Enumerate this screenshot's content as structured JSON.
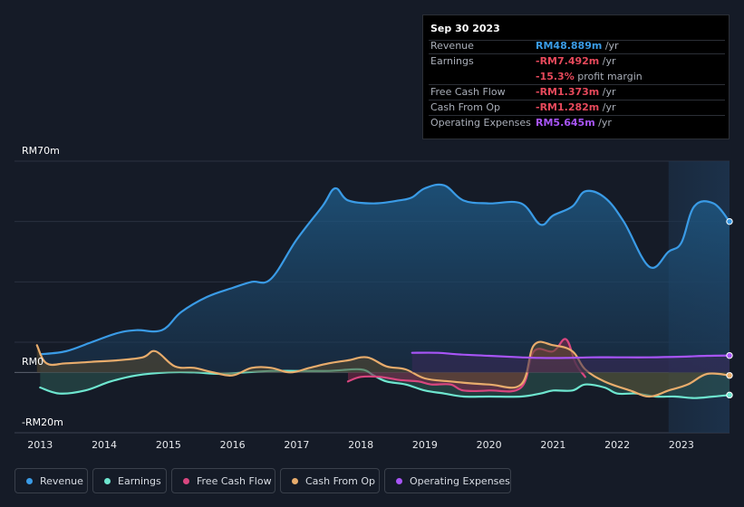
{
  "tooltip": {
    "date": "Sep 30 2023",
    "rows": [
      {
        "label": "Revenue",
        "value": "RM48.889m",
        "unit": " /yr",
        "color": "#3a9be6"
      },
      {
        "label": "Earnings",
        "value": "-RM7.492m",
        "unit": " /yr",
        "color": "#e7495b"
      },
      {
        "label": "",
        "value": "-15.3%",
        "unit": " profit margin",
        "color": "#e7495b"
      },
      {
        "label": "Free Cash Flow",
        "value": "-RM1.373m",
        "unit": " /yr",
        "color": "#e7495b"
      },
      {
        "label": "Cash From Op",
        "value": "-RM1.282m",
        "unit": " /yr",
        "color": "#e7495b"
      },
      {
        "label": "Operating Expenses",
        "value": "RM5.645m",
        "unit": " /yr",
        "color": "#a855f7"
      }
    ]
  },
  "legend": [
    {
      "label": "Revenue",
      "color": "#3a9be6"
    },
    {
      "label": "Earnings",
      "color": "#6ee6cf"
    },
    {
      "label": "Free Cash Flow",
      "color": "#d9467f"
    },
    {
      "label": "Cash From Op",
      "color": "#e8ac6c"
    },
    {
      "label": "Operating Expenses",
      "color": "#a855f7"
    }
  ],
  "chart_data": {
    "type": "area",
    "title": "",
    "xlabel": "",
    "ylabel": "",
    "ylim": [
      -20,
      70
    ],
    "y_ticks": [
      "RM70m",
      "RM0",
      "-RM20m"
    ],
    "x_ticks": [
      2013,
      2014,
      2015,
      2016,
      2017,
      2018,
      2019,
      2020,
      2021,
      2022,
      2023
    ],
    "x_range": [
      2012.6,
      2023.75
    ],
    "forecast_shade_start": 2022.8,
    "series": [
      {
        "name": "Revenue",
        "color": "#3a9be6",
        "x": [
          2013.0,
          2013.4,
          2013.8,
          2014.2,
          2014.5,
          2014.9,
          2015.2,
          2015.6,
          2016.0,
          2016.3,
          2016.6,
          2017.0,
          2017.4,
          2017.6,
          2017.8,
          2018.2,
          2018.6,
          2018.8,
          2019.0,
          2019.3,
          2019.6,
          2020.0,
          2020.5,
          2020.8,
          2021.0,
          2021.3,
          2021.5,
          2021.8,
          2022.1,
          2022.5,
          2022.8,
          2023.0,
          2023.2,
          2023.5,
          2023.75
        ],
        "values": [
          6,
          7,
          10,
          13,
          14,
          14,
          20,
          25,
          28,
          30,
          31,
          44,
          55,
          61,
          57,
          56,
          57,
          58,
          61,
          62,
          57,
          56,
          56,
          49,
          52,
          55,
          60,
          58,
          50,
          35,
          40,
          43,
          55,
          56,
          50
        ]
      },
      {
        "name": "Earnings",
        "color": "#6ee6cf",
        "x": [
          2013.0,
          2013.3,
          2013.7,
          2014.1,
          2014.5,
          2015.0,
          2015.4,
          2015.8,
          2016.2,
          2016.6,
          2017.0,
          2017.5,
          2018.0,
          2018.2,
          2018.4,
          2018.7,
          2019.0,
          2019.3,
          2019.6,
          2020.0,
          2020.5,
          2020.8,
          2021.0,
          2021.3,
          2021.5,
          2021.8,
          2022.0,
          2022.3,
          2022.6,
          2022.9,
          2023.2,
          2023.5,
          2023.75
        ],
        "values": [
          -5,
          -7,
          -6,
          -3,
          -1,
          0,
          0,
          -0.5,
          0,
          0.5,
          0.5,
          0.5,
          1,
          -1,
          -3,
          -4,
          -6,
          -7,
          -8,
          -8,
          -8,
          -7,
          -6,
          -6,
          -4,
          -5,
          -7,
          -7,
          -8,
          -8,
          -8.5,
          -8,
          -7.5
        ]
      },
      {
        "name": "Free Cash Flow",
        "color": "#d9467f",
        "x": [
          2017.8,
          2018.0,
          2018.3,
          2018.6,
          2018.9,
          2019.1,
          2019.4,
          2019.6,
          2020.0,
          2020.5,
          2020.7,
          2021.0,
          2021.2,
          2021.35,
          2021.5
        ],
        "values": [
          -3,
          -1.5,
          -1.5,
          -2.5,
          -3,
          -4,
          -4,
          -6,
          -6,
          -5,
          7,
          7,
          11,
          3,
          -1.5
        ]
      },
      {
        "name": "Cash From Op",
        "color": "#e8ac6c",
        "x": [
          2012.95,
          2013.1,
          2013.4,
          2013.8,
          2014.2,
          2014.6,
          2014.8,
          2015.1,
          2015.4,
          2015.7,
          2016.0,
          2016.3,
          2016.6,
          2016.9,
          2017.2,
          2017.5,
          2017.8,
          2018.1,
          2018.4,
          2018.7,
          2019.0,
          2019.4,
          2020.0,
          2020.5,
          2020.7,
          2021.0,
          2021.3,
          2021.5,
          2021.8,
          2022.2,
          2022.5,
          2022.8,
          2023.1,
          2023.4,
          2023.75
        ],
        "values": [
          9,
          3,
          3,
          3.5,
          4,
          5,
          7,
          2,
          1.5,
          0,
          -1,
          1.5,
          1.5,
          0,
          1.5,
          3,
          4,
          5,
          2,
          1,
          -2,
          -3,
          -4,
          -4,
          9,
          9,
          7,
          1,
          -3,
          -6,
          -8,
          -6,
          -4,
          -0.5,
          -1
        ]
      },
      {
        "name": "Operating Expenses",
        "color": "#a855f7",
        "x": [
          2018.8,
          2019.2,
          2019.5,
          2020.0,
          2020.5,
          2020.8,
          2021.2,
          2021.6,
          2022.0,
          2022.5,
          2023.0,
          2023.4,
          2023.75
        ],
        "values": [
          6.5,
          6.5,
          6,
          5.5,
          5,
          4.8,
          4.8,
          5,
          5,
          5,
          5.2,
          5.5,
          5.6
        ]
      }
    ]
  }
}
